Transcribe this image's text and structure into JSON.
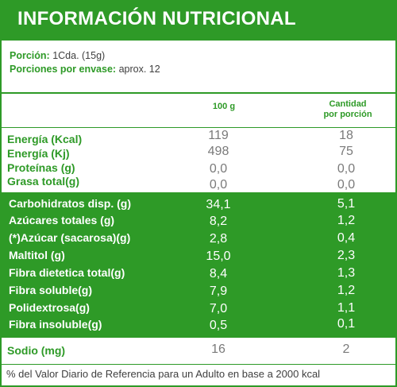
{
  "title": "INFORMACIÓN NUTRICIONAL",
  "portion": {
    "label": "Porción:",
    "value": "1Cda. (15g)",
    "servings_label": "Porciones por envase:",
    "servings_value": "aprox. 12"
  },
  "columns": {
    "col1": "100 g",
    "col2_line1": "Cantidad",
    "col2_line2": "por porción"
  },
  "rows_top": [
    {
      "label": "Energía (Kcal)",
      "v100": "119",
      "vport": "18"
    },
    {
      "label": "Energía (Kj)",
      "v100": "498",
      "vport": "75"
    },
    {
      "label": "Proteínas (g)",
      "v100": "0,0",
      "vport": "0,0"
    },
    {
      "label": "Grasa total(g)",
      "v100": "0,0",
      "vport": "0,0"
    }
  ],
  "rows_green": [
    {
      "label": "Carbohidratos disp. (g)",
      "v100": "34,1",
      "vport": "5,1"
    },
    {
      "label": "Azúcares totales (g)",
      "v100": "8,2",
      "vport": "1,2"
    },
    {
      "label": "(*)Azúcar (sacarosa)(g)",
      "v100": "2,8",
      "vport": "0,4"
    },
    {
      "label": "Maltitol (g)",
      "v100": "15,0",
      "vport": "2,3"
    },
    {
      "label": "Fibra dietetica total(g)",
      "v100": "8,4",
      "vport": "1,3"
    },
    {
      "label": "Fibra soluble(g)",
      "v100": "7,9",
      "vport": "1,2"
    },
    {
      "label": "Polidextrosa(g)",
      "v100": "7,0",
      "vport": "1,1"
    },
    {
      "label": "Fibra insoluble(g)",
      "v100": "0,5",
      "vport": "0,1"
    }
  ],
  "sodio": {
    "label": "Sodio (mg)",
    "v100": "16",
    "vport": "2"
  },
  "footer": "% del Valor Diario de Referencia para un Adulto en base a 2000 kcal",
  "colors": {
    "green": "#2e9a27",
    "white": "#ffffff",
    "gray_text": "#7a7a7a"
  }
}
